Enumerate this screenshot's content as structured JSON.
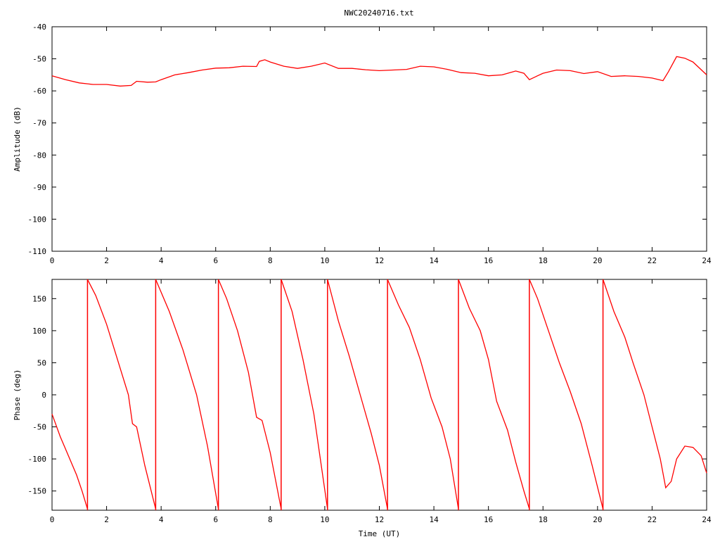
{
  "title": "NWC20240716.txt",
  "chart_data": [
    {
      "type": "line",
      "name": "amplitude",
      "xlabel": "",
      "ylabel": "Amplitude (dB)",
      "xlim": [
        0,
        24
      ],
      "ylim": [
        -110,
        -40
      ],
      "xticks": [
        0,
        2,
        4,
        6,
        8,
        10,
        12,
        14,
        16,
        18,
        20,
        22,
        24
      ],
      "xtick_labels": [
        "0",
        "2",
        "4",
        "6",
        "8",
        "10",
        "12",
        "14",
        "16",
        "18",
        "20",
        "22",
        "24"
      ],
      "yticks": [
        -40,
        -50,
        -60,
        -70,
        -80,
        -90,
        -100,
        -110
      ],
      "ytick_labels": [
        "-40",
        "-50",
        "-60",
        "-70",
        "-80",
        "-90",
        "-100",
        "-110"
      ],
      "grid": false,
      "color": "#ff0000",
      "x": [
        0,
        0.5,
        1,
        1.5,
        2,
        2.5,
        2.9,
        3.1,
        3.5,
        3.8,
        4,
        4.5,
        5,
        5.5,
        6,
        6.5,
        7,
        7.5,
        7.6,
        7.8,
        8,
        8.5,
        9,
        9.5,
        10,
        10.5,
        11,
        11.5,
        12,
        12.5,
        13,
        13.5,
        14,
        14.5,
        15,
        15.5,
        16,
        16.5,
        17,
        17.3,
        17.5,
        17.8,
        18,
        18.5,
        19,
        19.5,
        20,
        20.5,
        21,
        21.5,
        22,
        22.4,
        22.6,
        22.9,
        23.2,
        23.5,
        24
      ],
      "y": [
        -55.3,
        -56.5,
        -57.5,
        -58.0,
        -58.0,
        -58.5,
        -58.3,
        -57.0,
        -57.3,
        -57.2,
        -56.5,
        -55.0,
        -54.3,
        -53.5,
        -52.9,
        -52.8,
        -52.3,
        -52.4,
        -50.8,
        -50.3,
        -51.0,
        -52.3,
        -53.0,
        -52.3,
        -51.3,
        -53.0,
        -53.0,
        -53.4,
        -53.7,
        -53.5,
        -53.3,
        -52.3,
        -52.5,
        -53.3,
        -54.3,
        -54.5,
        -55.3,
        -55.0,
        -53.8,
        -54.5,
        -56.5,
        -55.3,
        -54.5,
        -53.5,
        -53.7,
        -54.6,
        -54.0,
        -55.5,
        -55.3,
        -55.5,
        -56.0,
        -56.8,
        -54.0,
        -49.3,
        -49.8,
        -51.0,
        -55.0
      ]
    },
    {
      "type": "line",
      "name": "phase",
      "xlabel": "Time (UT)",
      "ylabel": "Phase (deg)",
      "xlim": [
        0,
        24
      ],
      "ylim": [
        -180,
        180
      ],
      "xticks": [
        0,
        2,
        4,
        6,
        8,
        10,
        12,
        14,
        16,
        18,
        20,
        22,
        24
      ],
      "xtick_labels": [
        "0",
        "2",
        "4",
        "6",
        "8",
        "10",
        "12",
        "14",
        "16",
        "18",
        "20",
        "22",
        "24"
      ],
      "yticks": [
        150,
        100,
        50,
        0,
        -50,
        -100,
        -150
      ],
      "ytick_labels": [
        "150",
        "100",
        "50",
        "0",
        "-50",
        "-100",
        "-150"
      ],
      "grid": false,
      "color": "#ff0000",
      "segments": [
        {
          "x": [
            0,
            0.3,
            0.6,
            0.9,
            1.1,
            1.3
          ],
          "y": [
            -30,
            -65,
            -95,
            -125,
            -150,
            -178
          ]
        },
        {
          "x": [
            1.3,
            1.6,
            2.0,
            2.4,
            2.8,
            2.95,
            3.1,
            3.4,
            3.8
          ],
          "y": [
            180,
            155,
            110,
            55,
            0,
            -45,
            -50,
            -110,
            -178
          ]
        },
        {
          "x": [
            3.8,
            4.3,
            4.8,
            5.3,
            5.7,
            6.1
          ],
          "y": [
            180,
            130,
            70,
            0,
            -80,
            -178
          ]
        },
        {
          "x": [
            6.1,
            6.4,
            6.8,
            7.2,
            7.5,
            7.7,
            8.0,
            8.4
          ],
          "y": [
            180,
            150,
            100,
            35,
            -35,
            -40,
            -90,
            -178
          ]
        },
        {
          "x": [
            8.4,
            8.8,
            9.2,
            9.6,
            10.1
          ],
          "y": [
            180,
            130,
            55,
            -30,
            -178
          ]
        },
        {
          "x": [
            10.1,
            10.5,
            10.9,
            11.3,
            11.7,
            12.0,
            12.3
          ],
          "y": [
            180,
            115,
            60,
            0,
            -60,
            -110,
            -178
          ]
        },
        {
          "x": [
            12.3,
            12.7,
            13.1,
            13.5,
            13.9,
            14.3,
            14.6,
            14.9
          ],
          "y": [
            180,
            140,
            105,
            55,
            -5,
            -50,
            -100,
            -178
          ]
        },
        {
          "x": [
            14.9,
            15.3,
            15.7,
            16.0,
            16.3,
            16.7,
            17.0,
            17.3,
            17.5
          ],
          "y": [
            180,
            135,
            100,
            55,
            -10,
            -55,
            -105,
            -150,
            -178
          ]
        },
        {
          "x": [
            17.5,
            17.8,
            18.2,
            18.6,
            19.0,
            19.4,
            19.8,
            20.2
          ],
          "y": [
            180,
            150,
            100,
            50,
            5,
            -45,
            -110,
            -178
          ]
        },
        {
          "x": [
            20.2,
            20.6,
            21.0,
            21.3,
            21.7,
            22.0,
            22.3,
            22.5,
            22.7,
            22.9,
            23.2,
            23.5,
            23.8,
            24.0
          ],
          "y": [
            180,
            130,
            90,
            50,
            0,
            -50,
            -100,
            -145,
            -135,
            -100,
            -80,
            -82,
            -95,
            -122
          ]
        }
      ],
      "wraps": [
        1.3,
        3.8,
        6.1,
        8.4,
        10.1,
        12.3,
        14.9,
        17.5,
        20.2
      ]
    }
  ]
}
